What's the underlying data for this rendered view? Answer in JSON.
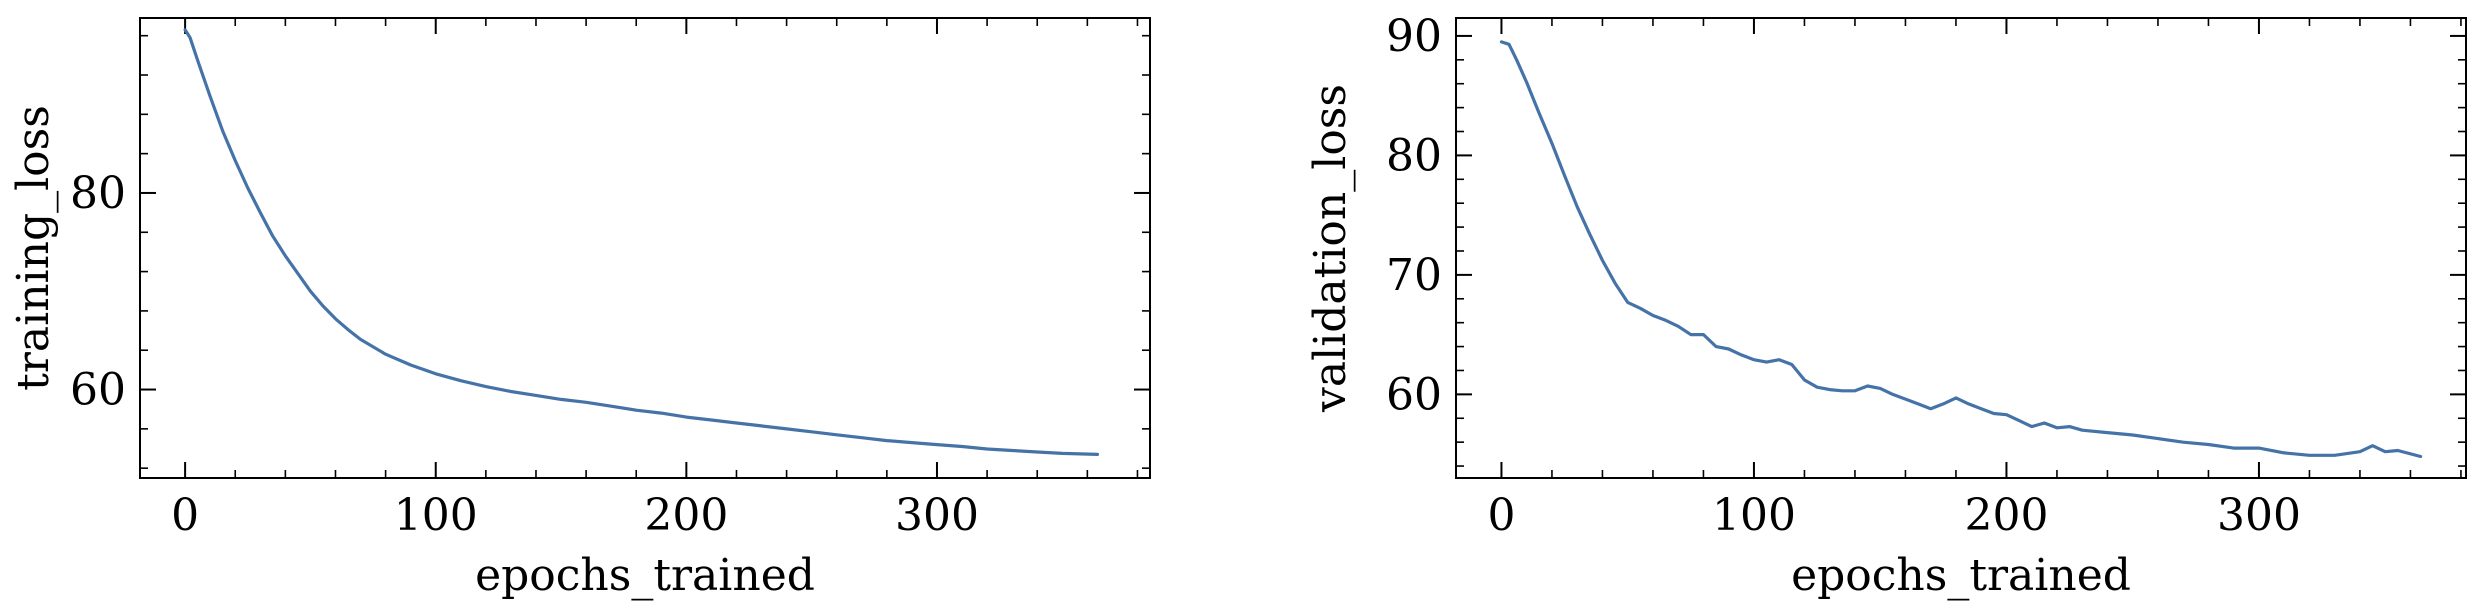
{
  "chart_data": [
    {
      "type": "line",
      "title": "",
      "xlabel": "epochs_trained",
      "ylabel": "training_loss",
      "xlim": [
        -18,
        385
      ],
      "ylim": [
        51,
        97.8
      ],
      "xticks": [
        0,
        100,
        200,
        300
      ],
      "yticks": [
        60,
        80
      ],
      "grid": false,
      "color": "#4573A8",
      "series": [
        {
          "x": [
            0,
            2,
            5,
            10,
            15,
            20,
            25,
            30,
            35,
            40,
            45,
            50,
            55,
            60,
            65,
            70,
            80,
            90,
            100,
            110,
            120,
            130,
            140,
            150,
            160,
            170,
            180,
            190,
            200,
            210,
            220,
            230,
            240,
            250,
            260,
            270,
            280,
            290,
            300,
            310,
            320,
            330,
            340,
            350,
            364
          ],
          "y": [
            96.6,
            95.8,
            93.5,
            89.8,
            86.3,
            83.3,
            80.5,
            78,
            75.6,
            73.6,
            71.8,
            70,
            68.5,
            67.2,
            66.1,
            65.1,
            63.6,
            62.5,
            61.6,
            60.9,
            60.3,
            59.8,
            59.4,
            59.0,
            58.7,
            58.3,
            57.9,
            57.6,
            57.2,
            56.9,
            56.6,
            56.3,
            56.0,
            55.7,
            55.4,
            55.1,
            54.8,
            54.6,
            54.4,
            54.2,
            53.95,
            53.8,
            53.65,
            53.5,
            53.4
          ]
        }
      ]
    },
    {
      "type": "line",
      "title": "",
      "xlabel": "epochs_trained",
      "ylabel": "validation_loss",
      "xlim": [
        -18,
        382
      ],
      "ylim": [
        53,
        91.5
      ],
      "xticks": [
        0,
        100,
        200,
        300
      ],
      "yticks": [
        60,
        70,
        80,
        90
      ],
      "grid": false,
      "color": "#4573A8",
      "series": [
        {
          "x": [
            0,
            3,
            6,
            10,
            15,
            20,
            25,
            30,
            35,
            40,
            45,
            50,
            55,
            60,
            65,
            70,
            75,
            80,
            85,
            90,
            95,
            100,
            105,
            110,
            115,
            120,
            125,
            130,
            135,
            140,
            145,
            150,
            155,
            160,
            165,
            170,
            175,
            180,
            185,
            190,
            195,
            200,
            205,
            210,
            215,
            220,
            225,
            230,
            240,
            250,
            260,
            270,
            280,
            290,
            300,
            310,
            320,
            330,
            340,
            345,
            350,
            355,
            364
          ],
          "y": [
            89.5,
            89.3,
            88.0,
            86.1,
            83.5,
            81.0,
            78.3,
            75.7,
            73.4,
            71.2,
            69.3,
            67.7,
            67.2,
            66.6,
            66.2,
            65.7,
            65.0,
            65.0,
            64.0,
            63.8,
            63.3,
            62.9,
            62.7,
            62.9,
            62.5,
            61.2,
            60.6,
            60.4,
            60.3,
            60.3,
            60.7,
            60.5,
            60.0,
            59.6,
            59.2,
            58.8,
            59.2,
            59.7,
            59.2,
            58.8,
            58.4,
            58.3,
            57.8,
            57.3,
            57.6,
            57.2,
            57.3,
            57.0,
            56.8,
            56.6,
            56.3,
            56.0,
            55.8,
            55.5,
            55.5,
            55.1,
            54.9,
            54.9,
            55.2,
            55.7,
            55.2,
            55.3,
            54.8
          ]
        }
      ]
    }
  ]
}
